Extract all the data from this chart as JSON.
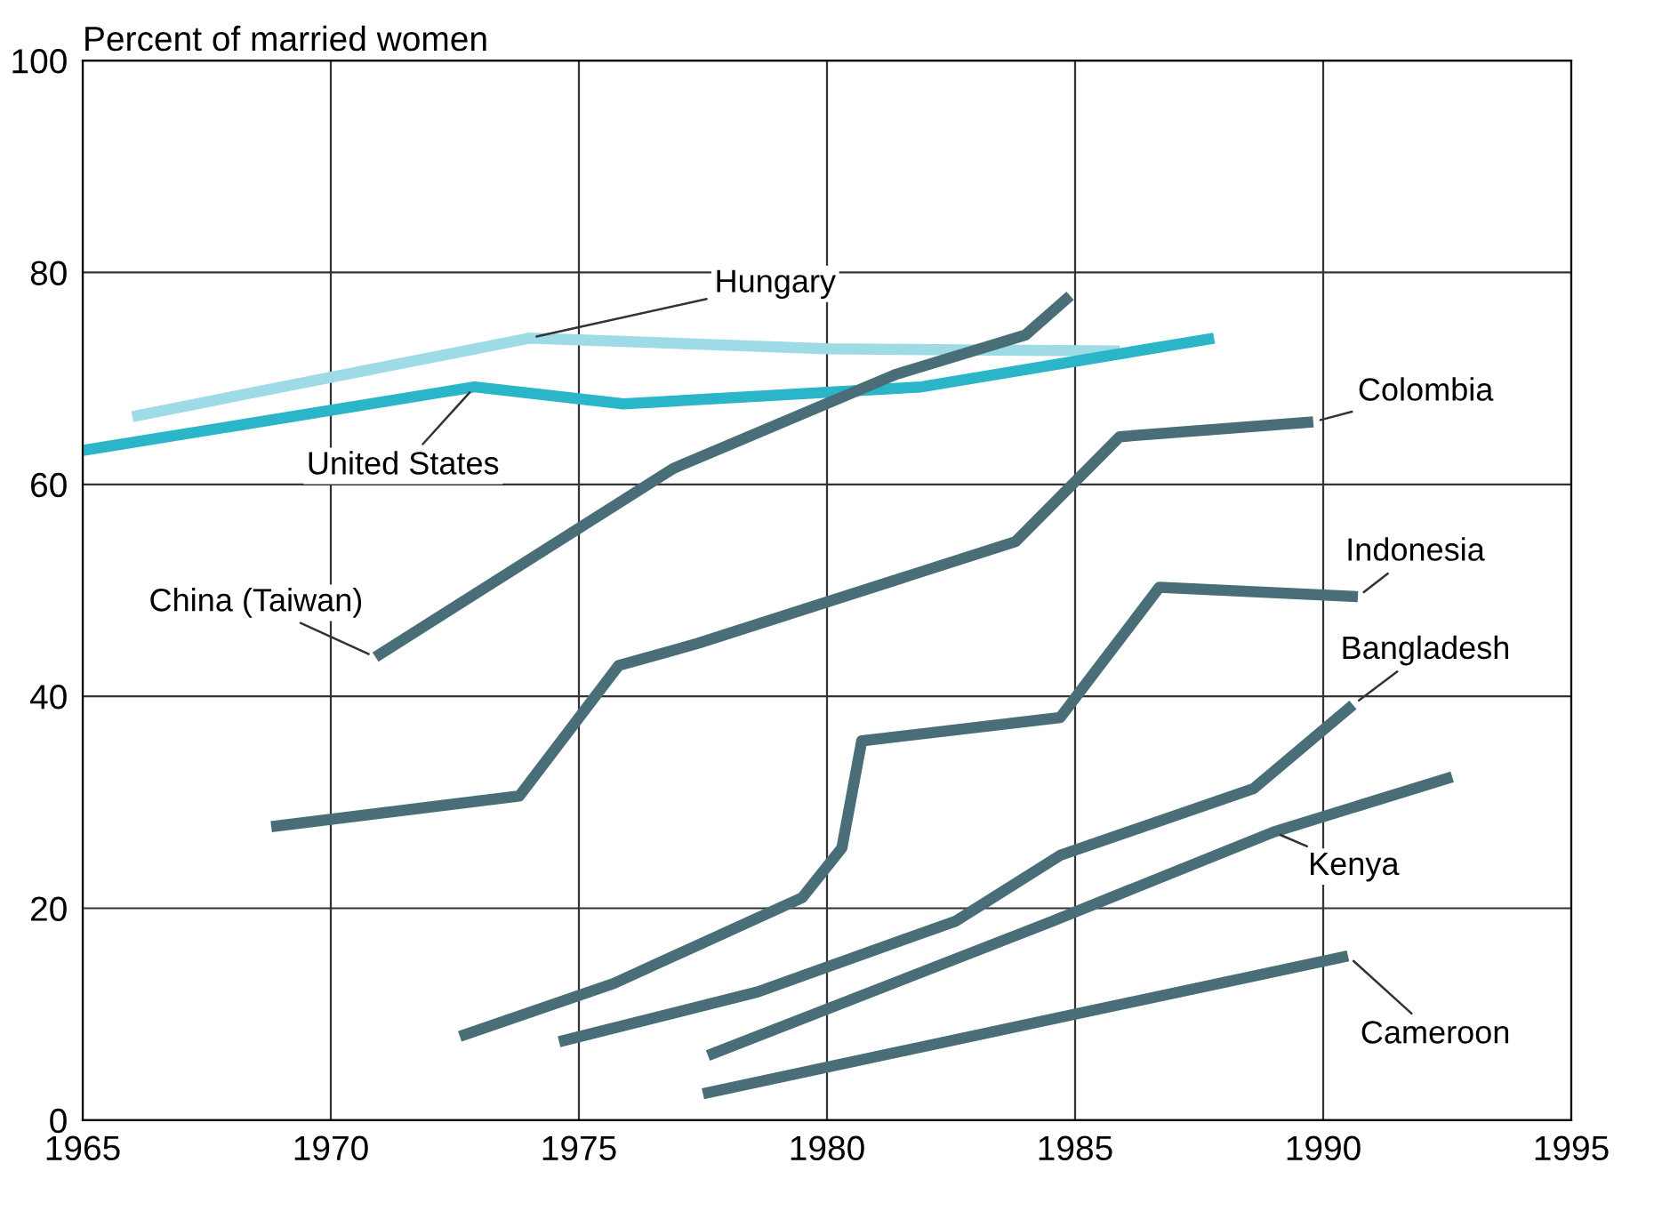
{
  "chart_data": {
    "type": "line",
    "ylabel": "Percent of married women",
    "xlim": [
      1965,
      1995
    ],
    "ylim": [
      0,
      100
    ],
    "xticks": [
      1965,
      1970,
      1975,
      1980,
      1985,
      1990,
      1995
    ],
    "yticks": [
      0,
      20,
      40,
      60,
      80,
      100
    ],
    "grid": true,
    "legend": false,
    "marker": "none",
    "line_style": "solid",
    "series": [
      {
        "name": "Hungary",
        "color": "#9fdbe6",
        "x": [
          1966,
          1974,
          1980,
          1985.9
        ],
        "values": [
          66.4,
          73.8,
          72.8,
          72.6
        ]
      },
      {
        "name": "United States",
        "color": "#2ab5c8",
        "x": [
          1965,
          1972.9,
          1975.9,
          1981.9,
          1987.8
        ],
        "values": [
          63.2,
          69.2,
          67.6,
          69.2,
          73.8
        ]
      },
      {
        "name": "China (Taiwan)",
        "color": "#4a6e78",
        "x": [
          1970.9,
          1976.9,
          1981.4,
          1984,
          1984.9
        ],
        "values": [
          43.7,
          61.5,
          70.4,
          74.1,
          77.8
        ]
      },
      {
        "name": "Colombia",
        "color": "#4a6e78",
        "x": [
          1968.8,
          1973.8,
          1975.8,
          1977.4,
          1983.8,
          1985.9,
          1989.8
        ],
        "values": [
          27.7,
          30.6,
          42.9,
          45.0,
          54.6,
          64.5,
          65.9
        ]
      },
      {
        "name": "Indonesia",
        "color": "#4a6e78",
        "x": [
          1972.6,
          1975.7,
          1979.5,
          1980.3,
          1980.7,
          1984.7,
          1986.7,
          1990.7
        ],
        "values": [
          7.9,
          12.9,
          21.0,
          25.7,
          35.8,
          38.0,
          50.3,
          49.4
        ]
      },
      {
        "name": "Bangladesh",
        "color": "#4a6e78",
        "x": [
          1974.6,
          1978.6,
          1982.6,
          1984.7,
          1988.6,
          1990.6
        ],
        "values": [
          7.4,
          12.1,
          18.8,
          25.0,
          31.3,
          39.2
        ]
      },
      {
        "name": "Kenya",
        "color": "#4a6e78",
        "x": [
          1977.6,
          1984.5,
          1989.0,
          1992.6
        ],
        "values": [
          6.1,
          18.7,
          27.2,
          32.4
        ]
      },
      {
        "name": "Cameroon",
        "color": "#4a6e78",
        "x": [
          1977.5,
          1990.5
        ],
        "values": [
          2.5,
          15.5
        ]
      }
    ]
  }
}
